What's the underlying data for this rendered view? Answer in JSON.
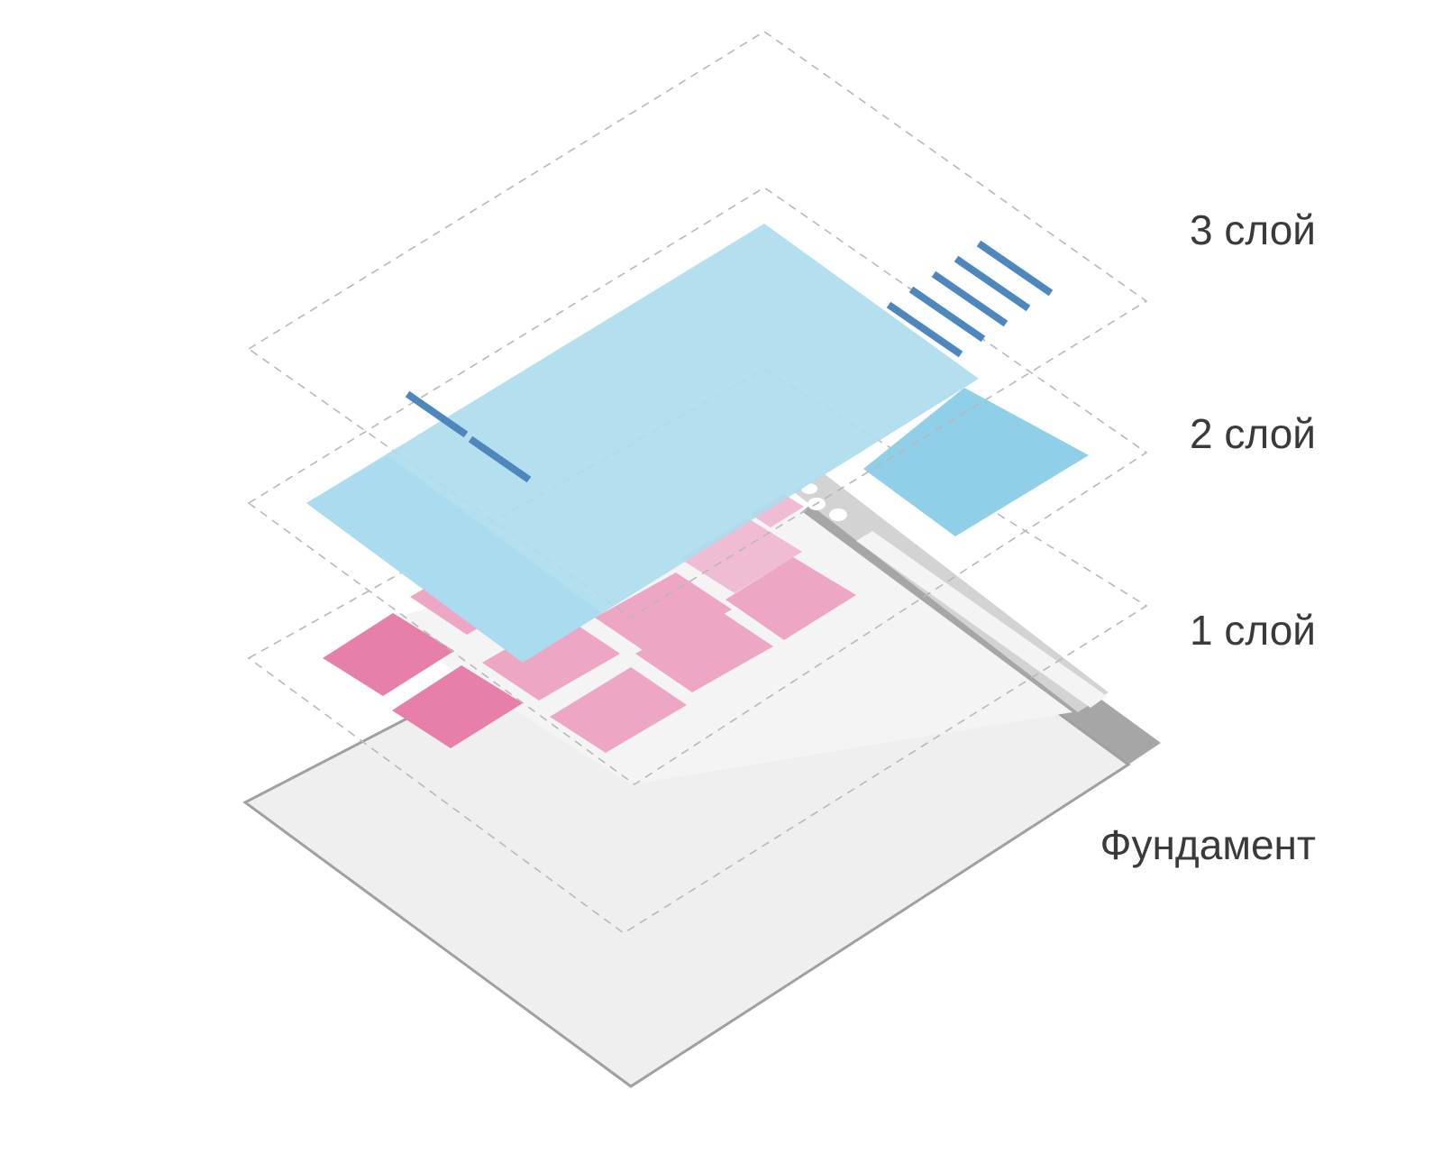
{
  "labels": {
    "layer_3": "3 слой",
    "layer_2": "2 слой",
    "layer_1": "1 слой",
    "foundation": "Фундамент"
  },
  "colors": {
    "foundation_fill": "#eeefee",
    "foundation_border": "#a0a0a0",
    "foundation_side": "#a6a6a6",
    "inner_frame": "#d2d3d2",
    "inner_panel": "#f3f4f3",
    "tile_dark_pink": "#e67fa9",
    "tile_mid_pink": "#eda6c4",
    "tile_light_pink": "#f0bcd4",
    "panel_light_blue": "#aedcee",
    "panel_mid_blue": "#8fcfe8",
    "stripe_blue": "#4d87be",
    "dashed_outline": "#b8b8b8",
    "label_text": "#3a3a3a"
  }
}
